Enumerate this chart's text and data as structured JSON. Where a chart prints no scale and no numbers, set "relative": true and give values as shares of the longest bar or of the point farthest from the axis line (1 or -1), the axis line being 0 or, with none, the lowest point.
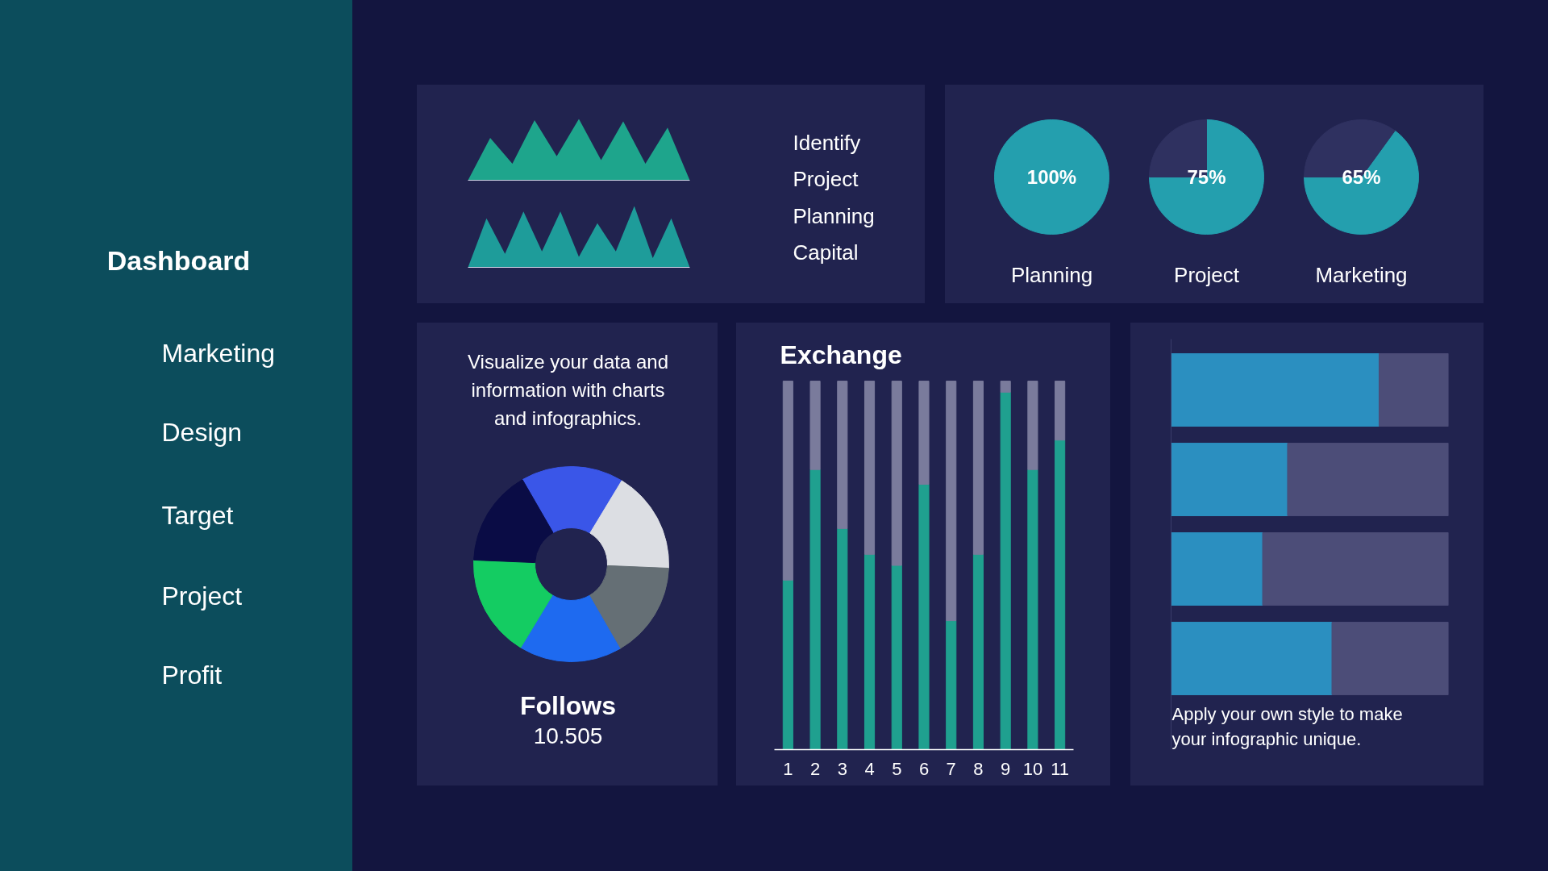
{
  "chart_data": [
    {
      "type": "other",
      "title": "Dashboard",
      "annotations": [
        "Marketing",
        "Design",
        "Target",
        "Project",
        "Profit"
      ]
    },
    {
      "type": "area",
      "relative": true,
      "categories": [
        null,
        null,
        null,
        null,
        null,
        null,
        null,
        null,
        null,
        null,
        null
      ],
      "values": [
        0,
        0.69,
        0.27,
        0.98,
        0.39,
        1,
        0.33,
        0.96,
        0.27,
        0.86,
        0
      ],
      "color": "#1ea58c"
    },
    {
      "type": "area",
      "relative": true,
      "categories": [
        null,
        null,
        null,
        null,
        null,
        null,
        null,
        null,
        null,
        null,
        null,
        null,
        null
      ],
      "values": [
        0,
        0.8,
        0.22,
        0.91,
        0.26,
        0.91,
        0.17,
        0.72,
        0.26,
        1,
        0.15,
        0.8,
        0
      ],
      "color": "#1e9c9a"
    },
    {
      "type": "other",
      "annotations": [
        "Identify",
        "Project",
        "Planning",
        "Capital"
      ]
    },
    {
      "type": "pie",
      "title": "Planning",
      "categories": [
        null,
        null
      ],
      "values": [
        100,
        0
      ],
      "colors": [
        "#249fae",
        "#2f3160"
      ],
      "value_labels": [
        "100%",
        null
      ]
    },
    {
      "type": "pie",
      "title": "Project",
      "categories": [
        null,
        null
      ],
      "values": [
        75,
        25
      ],
      "colors": [
        "#249fae",
        "#2f3160"
      ],
      "value_labels": [
        "75%",
        null
      ]
    },
    {
      "type": "pie",
      "title": "Marketing",
      "categories": [
        null,
        null
      ],
      "values": [
        65,
        35
      ],
      "colors": [
        "#249fae",
        "#2f3160"
      ],
      "value_labels": [
        "65%",
        null
      ]
    },
    {
      "type": "donut",
      "categories": [
        null,
        null,
        null,
        null,
        null,
        null
      ],
      "values": [
        17,
        17,
        16,
        17,
        17,
        16
      ],
      "colors": [
        "#3a56e8",
        "#dcdee3",
        "#656f75",
        "#1e6af0",
        "#14cc62",
        "#0a0c45"
      ],
      "annotations": [
        "Visualize your data and information with charts and infographics.",
        "Follows",
        "10.505"
      ]
    },
    {
      "type": "bar",
      "title": "Exchange",
      "relative": true,
      "stacked": true,
      "categories": [
        "1",
        "2",
        "3",
        "4",
        "5",
        "6",
        "7",
        "8",
        "9",
        "10",
        "11"
      ],
      "series": [
        {
          "color": "#1fa08f",
          "values": [
            0.46,
            0.76,
            0.6,
            0.53,
            0.5,
            0.72,
            0.35,
            0.53,
            0.97,
            0.76,
            0.84
          ]
        },
        {
          "color": "#7a7b9c",
          "values": [
            0.54,
            0.24,
            0.4,
            0.47,
            0.5,
            0.28,
            0.65,
            0.47,
            0.03,
            0.24,
            0.16
          ]
        }
      ]
    },
    {
      "type": "bar",
      "relative": true,
      "stacked": true,
      "orientation": "horizontal",
      "categories": [
        null,
        null,
        null,
        null
      ],
      "series": [
        {
          "color": "#2b8fc0",
          "values": [
            0.75,
            0.42,
            0.33,
            0.58
          ]
        },
        {
          "color": "#4c4d78",
          "values": [
            0.25,
            0.58,
            0.67,
            0.42
          ]
        }
      ],
      "annotations": [
        "Apply your own style to make your infographic unique."
      ]
    }
  ]
}
